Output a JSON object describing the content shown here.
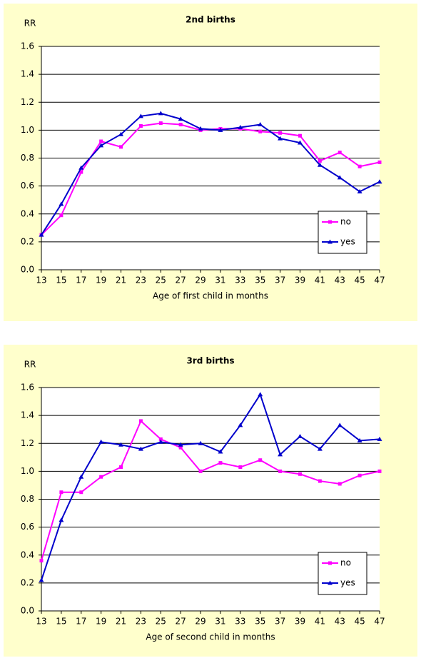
{
  "chart_data": [
    {
      "type": "line",
      "title": "2nd births",
      "y_label": "RR",
      "x_label": "Age of first child in months",
      "x": [
        13,
        15,
        17,
        19,
        21,
        23,
        25,
        27,
        29,
        31,
        33,
        35,
        37,
        39,
        41,
        43,
        45,
        47
      ],
      "xlim": [
        13,
        47
      ],
      "xticks": [
        13,
        15,
        17,
        19,
        21,
        23,
        25,
        27,
        29,
        31,
        33,
        35,
        37,
        39,
        41,
        43,
        45,
        47
      ],
      "ylim": [
        0,
        1.6
      ],
      "yticks": [
        {
          "value": 0,
          "label": "0.0"
        },
        {
          "value": 0.2,
          "label": "0.2"
        },
        {
          "value": 0.4,
          "label": "0.4"
        },
        {
          "value": 0.6,
          "label": "0.6"
        },
        {
          "value": 0.8,
          "label": "0.8"
        },
        {
          "value": 1,
          "label": "1.0"
        },
        {
          "value": 1.2,
          "label": "1.2"
        },
        {
          "value": 1.4,
          "label": "1.4"
        },
        {
          "value": 1.6,
          "label": "1.6"
        }
      ],
      "grid": true,
      "legend": "lower right",
      "series": [
        {
          "name": "no",
          "color": "#ff00ff",
          "marker": "square",
          "values": [
            0.25,
            0.39,
            0.7,
            0.92,
            0.88,
            1.03,
            1.05,
            1.04,
            1.0,
            1.01,
            1.01,
            0.99,
            0.98,
            0.96,
            0.78,
            0.84,
            0.74,
            0.77
          ]
        },
        {
          "name": "yes",
          "color": "#0000cc",
          "marker": "triangle",
          "values": [
            0.25,
            0.47,
            0.73,
            0.89,
            0.97,
            1.1,
            1.12,
            1.08,
            1.01,
            1.0,
            1.02,
            1.04,
            0.94,
            0.91,
            0.75,
            0.66,
            0.56,
            0.63
          ]
        }
      ]
    },
    {
      "type": "line",
      "title": "3rd births",
      "y_label": "RR",
      "x_label": "Age of second child in months",
      "x": [
        13,
        15,
        17,
        19,
        21,
        23,
        25,
        27,
        29,
        31,
        33,
        35,
        37,
        39,
        41,
        43,
        45,
        47
      ],
      "xlim": [
        13,
        47
      ],
      "xticks": [
        13,
        15,
        17,
        19,
        21,
        23,
        25,
        27,
        29,
        31,
        33,
        35,
        37,
        39,
        41,
        43,
        45,
        47
      ],
      "ylim": [
        0,
        1.6
      ],
      "yticks": [
        {
          "value": 0,
          "label": "0.0"
        },
        {
          "value": 0.2,
          "label": "0.2"
        },
        {
          "value": 0.4,
          "label": "0.4"
        },
        {
          "value": 0.6,
          "label": "0.6"
        },
        {
          "value": 0.8,
          "label": "0.8"
        },
        {
          "value": 1,
          "label": "1.0"
        },
        {
          "value": 1.2,
          "label": "1.2"
        },
        {
          "value": 1.4,
          "label": "1.4"
        },
        {
          "value": 1.6,
          "label": "1.6"
        }
      ],
      "grid": true,
      "legend": "lower right",
      "series": [
        {
          "name": "no",
          "color": "#ff00ff",
          "marker": "square",
          "values": [
            0.36,
            0.85,
            0.85,
            0.96,
            1.03,
            1.36,
            1.23,
            1.17,
            1.0,
            1.06,
            1.03,
            1.08,
            1.0,
            0.98,
            0.93,
            0.91,
            0.97,
            1.0
          ]
        },
        {
          "name": "yes",
          "color": "#0000cc",
          "marker": "triangle",
          "values": [
            0.22,
            0.65,
            0.96,
            1.21,
            1.19,
            1.16,
            1.21,
            1.19,
            1.2,
            1.14,
            1.33,
            1.55,
            1.12,
            1.25,
            1.16,
            1.33,
            1.22,
            1.23
          ]
        }
      ]
    }
  ]
}
